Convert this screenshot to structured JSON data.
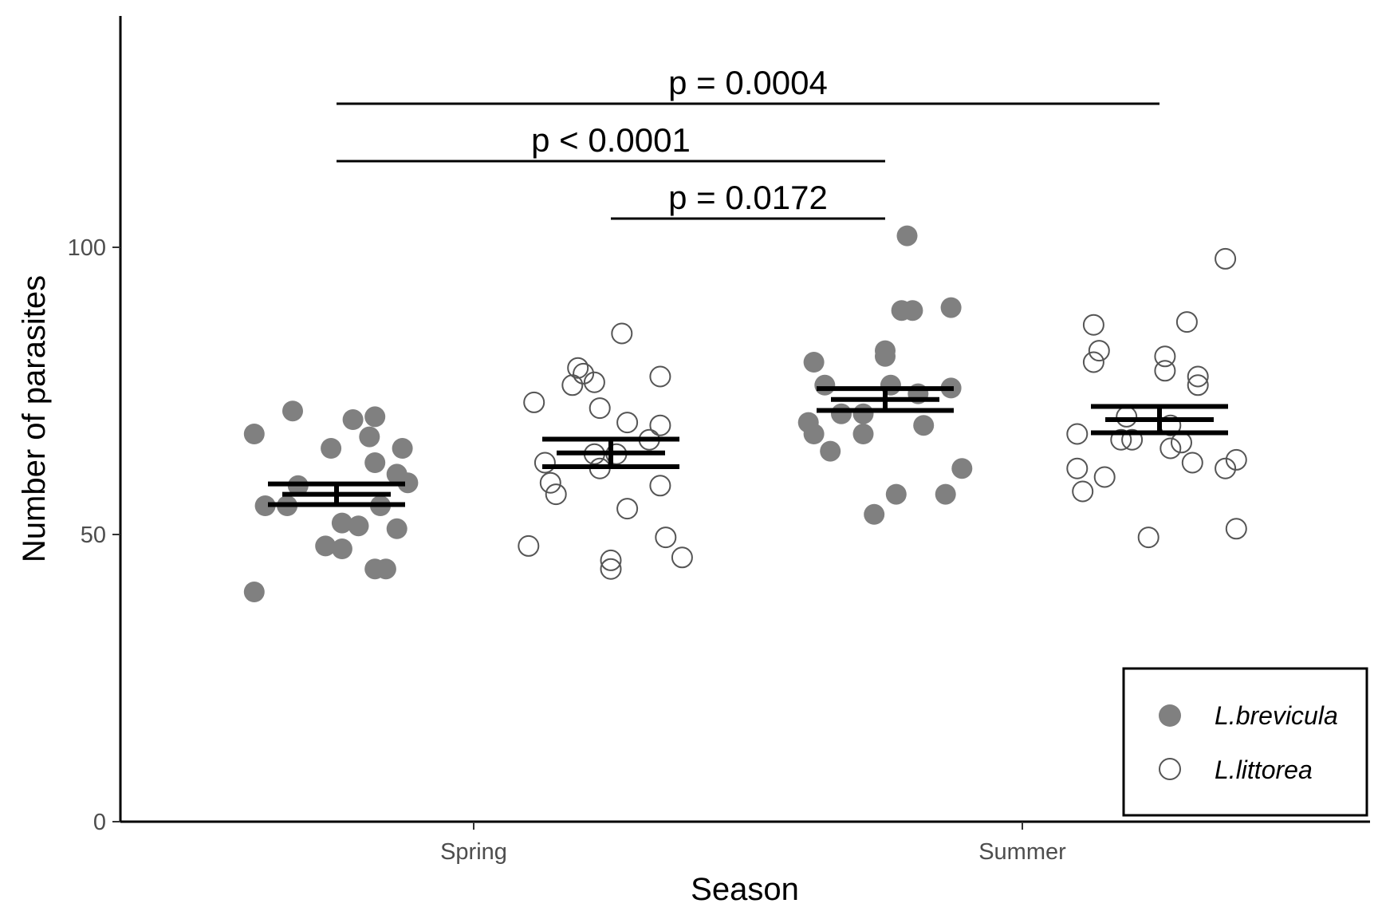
{
  "chart_data": {
    "type": "scatter",
    "title": "",
    "xlabel": "Season",
    "ylabel": "Number of parasites",
    "categories": [
      "Spring",
      "Summer"
    ],
    "yticks": [
      0,
      50,
      100
    ],
    "ylim": [
      0,
      140
    ],
    "grid": false,
    "legend_position": "bottom-right",
    "colors": {
      "L.brevicula": "#808080",
      "L.littorea_stroke": "#555555",
      "summary": "#000000"
    },
    "series": [
      {
        "name": "L.brevicula",
        "marker": "filled-circle",
        "points": [
          {
            "category": "Spring",
            "offset": -0.4,
            "y": 67.5
          },
          {
            "category": "Spring",
            "offset": -0.33,
            "y": 71.5
          },
          {
            "category": "Spring",
            "offset": -0.32,
            "y": 58.5
          },
          {
            "category": "Spring",
            "offset": -0.34,
            "y": 55.0
          },
          {
            "category": "Spring",
            "offset": -0.26,
            "y": 65.0
          },
          {
            "category": "Spring",
            "offset": -0.24,
            "y": 52.0
          },
          {
            "category": "Spring",
            "offset": -0.27,
            "y": 48.0
          },
          {
            "category": "Spring",
            "offset": -0.24,
            "y": 47.5
          },
          {
            "category": "Spring",
            "offset": -0.22,
            "y": 70.0
          },
          {
            "category": "Spring",
            "offset": -0.19,
            "y": 67.0
          },
          {
            "category": "Spring",
            "offset": -0.18,
            "y": 70.5
          },
          {
            "category": "Spring",
            "offset": -0.18,
            "y": 62.5
          },
          {
            "category": "Spring",
            "offset": -0.21,
            "y": 51.5
          },
          {
            "category": "Spring",
            "offset": -0.17,
            "y": 55.0
          },
          {
            "category": "Spring",
            "offset": -0.14,
            "y": 60.5
          },
          {
            "category": "Spring",
            "offset": -0.14,
            "y": 51.0
          },
          {
            "category": "Spring",
            "offset": -0.13,
            "y": 65.0
          },
          {
            "category": "Spring",
            "offset": -0.12,
            "y": 59.0
          },
          {
            "category": "Spring",
            "offset": -0.4,
            "y": 40.0
          },
          {
            "category": "Spring",
            "offset": -0.18,
            "y": 44.0
          },
          {
            "category": "Spring",
            "offset": -0.16,
            "y": 44.0
          },
          {
            "category": "Spring",
            "offset": -0.38,
            "y": 55.0
          },
          {
            "category": "Summer",
            "offset": -0.38,
            "y": 80.0
          },
          {
            "category": "Summer",
            "offset": -0.36,
            "y": 76.0
          },
          {
            "category": "Summer",
            "offset": -0.39,
            "y": 69.5
          },
          {
            "category": "Summer",
            "offset": -0.38,
            "y": 67.5
          },
          {
            "category": "Summer",
            "offset": -0.35,
            "y": 64.5
          },
          {
            "category": "Summer",
            "offset": -0.33,
            "y": 71.0
          },
          {
            "category": "Summer",
            "offset": -0.29,
            "y": 71.0
          },
          {
            "category": "Summer",
            "offset": -0.29,
            "y": 67.5
          },
          {
            "category": "Summer",
            "offset": -0.27,
            "y": 53.5
          },
          {
            "category": "Summer",
            "offset": -0.25,
            "y": 82.0
          },
          {
            "category": "Summer",
            "offset": -0.25,
            "y": 81.0
          },
          {
            "category": "Summer",
            "offset": -0.24,
            "y": 76.0
          },
          {
            "category": "Summer",
            "offset": -0.23,
            "y": 57.0
          },
          {
            "category": "Summer",
            "offset": -0.22,
            "y": 89.0
          },
          {
            "category": "Summer",
            "offset": -0.2,
            "y": 89.0
          },
          {
            "category": "Summer",
            "offset": -0.21,
            "y": 102.0
          },
          {
            "category": "Summer",
            "offset": -0.19,
            "y": 74.5
          },
          {
            "category": "Summer",
            "offset": -0.18,
            "y": 69.0
          },
          {
            "category": "Summer",
            "offset": -0.14,
            "y": 57.0
          },
          {
            "category": "Summer",
            "offset": -0.13,
            "y": 75.5
          },
          {
            "category": "Summer",
            "offset": -0.13,
            "y": 89.5
          },
          {
            "category": "Summer",
            "offset": -0.11,
            "y": 61.5
          }
        ],
        "mean": {
          "Spring": 57.0,
          "Summer": 73.5
        },
        "se_upper": {
          "Spring": 58.8,
          "Summer": 75.4
        },
        "se_lower": {
          "Spring": 55.2,
          "Summer": 71.6
        }
      },
      {
        "name": "L.littorea",
        "marker": "open-circle",
        "points": [
          {
            "category": "Spring",
            "offset": 0.11,
            "y": 73.0
          },
          {
            "category": "Spring",
            "offset": 0.13,
            "y": 62.5
          },
          {
            "category": "Spring",
            "offset": 0.14,
            "y": 59.0
          },
          {
            "category": "Spring",
            "offset": 0.15,
            "y": 57.0
          },
          {
            "category": "Spring",
            "offset": 0.1,
            "y": 48.0
          },
          {
            "category": "Spring",
            "offset": 0.18,
            "y": 76.0
          },
          {
            "category": "Spring",
            "offset": 0.19,
            "y": 79.0
          },
          {
            "category": "Spring",
            "offset": 0.2,
            "y": 78.0
          },
          {
            "category": "Spring",
            "offset": 0.22,
            "y": 76.5
          },
          {
            "category": "Spring",
            "offset": 0.22,
            "y": 64.0
          },
          {
            "category": "Spring",
            "offset": 0.23,
            "y": 72.0
          },
          {
            "category": "Spring",
            "offset": 0.23,
            "y": 61.5
          },
          {
            "category": "Spring",
            "offset": 0.25,
            "y": 45.5
          },
          {
            "category": "Spring",
            "offset": 0.25,
            "y": 44.0
          },
          {
            "category": "Spring",
            "offset": 0.26,
            "y": 64.0
          },
          {
            "category": "Spring",
            "offset": 0.27,
            "y": 85.0
          },
          {
            "category": "Spring",
            "offset": 0.28,
            "y": 69.5
          },
          {
            "category": "Spring",
            "offset": 0.28,
            "y": 54.5
          },
          {
            "category": "Spring",
            "offset": 0.32,
            "y": 66.5
          },
          {
            "category": "Spring",
            "offset": 0.34,
            "y": 77.5
          },
          {
            "category": "Spring",
            "offset": 0.34,
            "y": 69.0
          },
          {
            "category": "Spring",
            "offset": 0.34,
            "y": 58.5
          },
          {
            "category": "Spring",
            "offset": 0.35,
            "y": 49.5
          },
          {
            "category": "Spring",
            "offset": 0.38,
            "y": 46.0
          },
          {
            "category": "Summer",
            "offset": 0.1,
            "y": 67.5
          },
          {
            "category": "Summer",
            "offset": 0.1,
            "y": 61.5
          },
          {
            "category": "Summer",
            "offset": 0.11,
            "y": 57.5
          },
          {
            "category": "Summer",
            "offset": 0.13,
            "y": 80.0
          },
          {
            "category": "Summer",
            "offset": 0.13,
            "y": 86.5
          },
          {
            "category": "Summer",
            "offset": 0.14,
            "y": 82.0
          },
          {
            "category": "Summer",
            "offset": 0.15,
            "y": 60.0
          },
          {
            "category": "Summer",
            "offset": 0.18,
            "y": 66.5
          },
          {
            "category": "Summer",
            "offset": 0.19,
            "y": 70.5
          },
          {
            "category": "Summer",
            "offset": 0.2,
            "y": 66.5
          },
          {
            "category": "Summer",
            "offset": 0.23,
            "y": 49.5
          },
          {
            "category": "Summer",
            "offset": 0.26,
            "y": 78.5
          },
          {
            "category": "Summer",
            "offset": 0.26,
            "y": 81.0
          },
          {
            "category": "Summer",
            "offset": 0.27,
            "y": 69.0
          },
          {
            "category": "Summer",
            "offset": 0.27,
            "y": 65.0
          },
          {
            "category": "Summer",
            "offset": 0.29,
            "y": 66.0
          },
          {
            "category": "Summer",
            "offset": 0.3,
            "y": 87.0
          },
          {
            "category": "Summer",
            "offset": 0.31,
            "y": 62.5
          },
          {
            "category": "Summer",
            "offset": 0.32,
            "y": 77.5
          },
          {
            "category": "Summer",
            "offset": 0.32,
            "y": 76.0
          },
          {
            "category": "Summer",
            "offset": 0.37,
            "y": 61.5
          },
          {
            "category": "Summer",
            "offset": 0.37,
            "y": 98.0
          },
          {
            "category": "Summer",
            "offset": 0.39,
            "y": 63.0
          },
          {
            "category": "Summer",
            "offset": 0.39,
            "y": 51.0
          }
        ],
        "mean": {
          "Spring": 64.2,
          "Summer": 70.0
        },
        "se_upper": {
          "Spring": 66.6,
          "Summer": 72.3
        },
        "se_lower": {
          "Spring": 61.8,
          "Summer": 67.7
        }
      }
    ],
    "comparisons": [
      {
        "label": "p = 0.0004",
        "from": "Spring-L.brevicula",
        "to": "Summer-L.littorea",
        "y": 125
      },
      {
        "label": "p < 0.0001",
        "from": "Spring-L.brevicula",
        "to": "Summer-L.brevicula",
        "y": 115
      },
      {
        "label": "p = 0.0172",
        "from": "Spring-L.littorea",
        "to": "Summer-L.brevicula",
        "y": 105
      }
    ],
    "legend": [
      {
        "label": "L.brevicula",
        "marker": "filled-circle"
      },
      {
        "label": "L.littorea",
        "marker": "open-circle"
      }
    ]
  }
}
